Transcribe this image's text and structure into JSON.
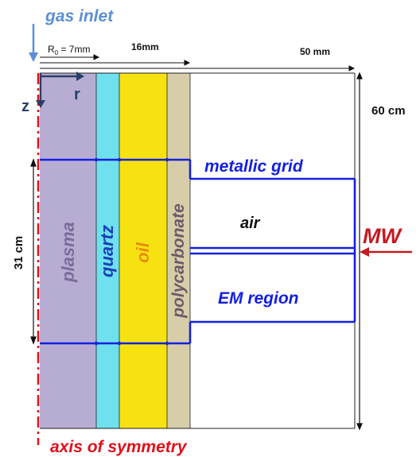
{
  "labels": {
    "gas_inlet": "gas inlet",
    "r0": "R",
    "r0_sub": "0",
    "r0_value": " = 7mm",
    "dim_16": "16mm",
    "dim_50": "50 mm",
    "dim_60": "60 cm",
    "dim_31": "31 cm",
    "axis_z": "z",
    "axis_r": "r",
    "metallic_grid": "metallic grid",
    "air": "air",
    "mw": "MW",
    "em_region": "EM region",
    "plasma": "plasma",
    "quartz": "quartz",
    "oil": "oil",
    "polycarbonate": "polycarbonate",
    "axis_of_symmetry": "axis of symmetry"
  },
  "colors": {
    "plasma": "#b7add3",
    "quartz": "#6ee0ee",
    "oil": "#f7e211",
    "polycarbonate": "#d7cda8",
    "grid_blue": "#1420e0",
    "title_blue": "#5b8fd6",
    "red": "#e0101a",
    "dark_red": "#c41a20",
    "label_purple": "#7a6a9a",
    "axis_dark": "#2a3f66"
  }
}
